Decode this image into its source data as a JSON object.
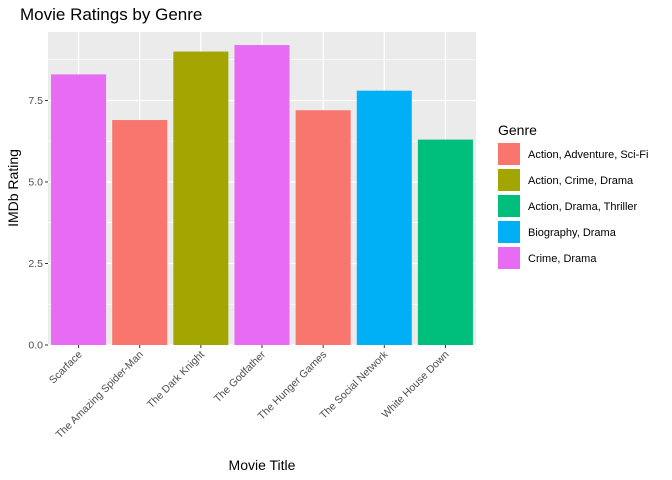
{
  "chart_data": {
    "type": "bar",
    "title": "Movie Ratings by Genre",
    "xlabel": "Movie Title",
    "ylabel": "IMDb Rating",
    "ylim": [
      0,
      9.6
    ],
    "yticks": [
      0.0,
      2.5,
      5.0,
      7.5
    ],
    "ytick_labels": [
      "0.0",
      "2.5",
      "5.0",
      "7.5"
    ],
    "grid": true,
    "legend_position": "right",
    "legend_title": "Genre",
    "categories": [
      "Scarface",
      "The Amazing Spider-Man",
      "The Dark Knight",
      "The Godfather",
      "The Hunger Games",
      "The Social Network",
      "White House Down"
    ],
    "values": [
      8.3,
      6.9,
      9.0,
      9.2,
      7.2,
      7.8,
      6.3
    ],
    "bar_genres": [
      "Crime, Drama",
      "Action, Adventure, Sci-Fi",
      "Action, Crime, Drama",
      "Crime, Drama",
      "Action, Adventure, Sci-Fi",
      "Biography, Drama",
      "Action, Drama, Thriller"
    ],
    "genres": [
      {
        "name": "Action, Adventure, Sci-Fi",
        "color": "#F8766D"
      },
      {
        "name": "Action, Crime, Drama",
        "color": "#A3A500"
      },
      {
        "name": "Action, Drama, Thriller",
        "color": "#00BF7D"
      },
      {
        "name": "Biography, Drama",
        "color": "#00B0F6"
      },
      {
        "name": "Crime, Drama",
        "color": "#E76BF3"
      }
    ],
    "panel_color": "#EBEBEB",
    "grid_color": "#FFFFFF"
  }
}
